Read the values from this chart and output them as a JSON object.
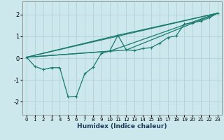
{
  "xlabel": "Humidex (Indice chaleur)",
  "xlim": [
    -0.5,
    23.5
  ],
  "ylim": [
    -2.6,
    2.6
  ],
  "xticks": [
    0,
    1,
    2,
    3,
    4,
    5,
    6,
    7,
    8,
    9,
    10,
    11,
    12,
    13,
    14,
    15,
    16,
    17,
    18,
    19,
    20,
    21,
    22,
    23
  ],
  "yticks": [
    -2,
    -1,
    0,
    1,
    2
  ],
  "bg_color": "#cce8ec",
  "line_color": "#1a7a6e",
  "grid_color": "#aacdd4",
  "series": [
    [
      0,
      0.04
    ],
    [
      1,
      -0.38
    ],
    [
      2,
      -0.52
    ],
    [
      3,
      -0.44
    ],
    [
      4,
      -0.44
    ],
    [
      5,
      -1.78
    ],
    [
      6,
      -1.75
    ],
    [
      7,
      -0.72
    ],
    [
      8,
      -0.42
    ],
    [
      9,
      0.22
    ],
    [
      10,
      0.32
    ],
    [
      11,
      1.05
    ],
    [
      12,
      0.37
    ],
    [
      13,
      0.35
    ],
    [
      14,
      0.44
    ],
    [
      15,
      0.48
    ],
    [
      16,
      0.68
    ],
    [
      17,
      0.94
    ],
    [
      18,
      1.02
    ],
    [
      19,
      1.56
    ],
    [
      20,
      1.62
    ],
    [
      21,
      1.7
    ],
    [
      22,
      1.85
    ],
    [
      23,
      2.06
    ]
  ],
  "straight_line": [
    [
      0,
      0.04
    ],
    [
      23,
      2.06
    ]
  ],
  "extra_lines": [
    [
      [
        0,
        0.04
      ],
      [
        11,
        1.05
      ],
      [
        23,
        2.06
      ]
    ],
    [
      [
        0,
        0.04
      ],
      [
        10,
        0.32
      ],
      [
        23,
        2.06
      ]
    ],
    [
      [
        0,
        0.04
      ],
      [
        12,
        0.37
      ],
      [
        23,
        2.06
      ]
    ]
  ],
  "marker": "+",
  "marker_size": 3,
  "marker_lw": 0.8,
  "line_width": 0.9,
  "xlabel_fontsize": 6.5,
  "xlabel_color": "#1a3a5c",
  "tick_fontsize": 5,
  "ytick_fontsize": 6
}
